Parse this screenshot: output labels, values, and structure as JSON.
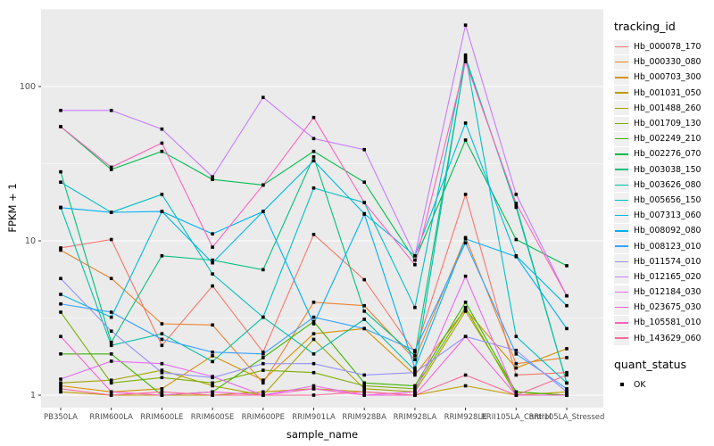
{
  "chart_data": {
    "type": "line",
    "title": "",
    "xlabel": "sample_name",
    "ylabel": "FPKM + 1",
    "y_scale": "log10",
    "ylim": [
      0.85,
      320
    ],
    "y_ticks": [
      "1",
      "10",
      "100"
    ],
    "y_tick_values": [
      1,
      10,
      100
    ],
    "grid": "white major and minor gridlines on gray panel",
    "panel_background": "#EBEBEB",
    "gridline_color": "#FFFFFF",
    "axis_text_color": "#4D4D4D",
    "legend_position": "right",
    "categories": [
      "PB350LA",
      "RRIM600LA",
      "RRIM600LE",
      "RRIM600SE",
      "RRIM600PE",
      "RRIM901LA",
      "RRIM928BA",
      "RRIM928LA",
      "RRIM928LE",
      "RRII105LA_Control",
      "RRII105LA_Stressed"
    ],
    "series": [
      {
        "name": "Hb_000078_170",
        "color": "#F8766D",
        "values": [
          9.0,
          10.2,
          2.1,
          5.1,
          1.9,
          11.0,
          5.6,
          1.9,
          20.0,
          1.35,
          1.4
        ]
      },
      {
        "name": "Hb_000330_080",
        "color": "#EA8331",
        "values": [
          8.7,
          5.7,
          2.9,
          2.85,
          1.2,
          4.0,
          3.8,
          1.7,
          10.5,
          1.6,
          1.75
        ]
      },
      {
        "name": "Hb_000703_300",
        "color": "#D89000",
        "values": [
          1.15,
          1.05,
          1.1,
          1.8,
          1.25,
          2.5,
          2.7,
          1.35,
          3.6,
          1.5,
          2.0
        ]
      },
      {
        "name": "Hb_001031_050",
        "color": "#C09B00",
        "values": [
          1.05,
          1.0,
          1.0,
          1.0,
          1.05,
          1.1,
          1.05,
          1.0,
          1.15,
          1.0,
          1.05
        ]
      },
      {
        "name": "Hb_001488_260",
        "color": "#A3A500",
        "values": [
          1.2,
          1.25,
          1.45,
          1.15,
          1.0,
          2.3,
          1.1,
          1.05,
          3.5,
          1.05,
          1.0
        ]
      },
      {
        "name": "Hb_001709_130",
        "color": "#7CAE00",
        "values": [
          3.45,
          1.2,
          1.3,
          1.2,
          1.45,
          1.4,
          1.15,
          1.1,
          3.7,
          1.0,
          1.0
        ]
      },
      {
        "name": "Hb_002249_210",
        "color": "#39B600",
        "values": [
          1.85,
          1.85,
          1.0,
          1.05,
          1.75,
          3.0,
          1.2,
          1.15,
          4.0,
          1.05,
          1.0
        ]
      },
      {
        "name": "Hb_002276_070",
        "color": "#00BB4E",
        "values": [
          55.0,
          29.0,
          38.0,
          25.0,
          23.0,
          38.0,
          24.0,
          7.5,
          45.0,
          10.2,
          6.9
        ]
      },
      {
        "name": "Hb_003038_150",
        "color": "#00BF7D",
        "values": [
          28.0,
          2.2,
          8.0,
          7.5,
          6.5,
          35.0,
          3.5,
          1.8,
          150.0,
          17.0,
          1.2
        ]
      },
      {
        "name": "Hb_003626_080",
        "color": "#00C1A7",
        "values": [
          16.5,
          2.1,
          2.5,
          1.65,
          3.2,
          1.85,
          3.1,
          1.45,
          155.0,
          16.5,
          1.2
        ]
      },
      {
        "name": "Hb_005656_150",
        "color": "#00BFC4",
        "values": [
          24.0,
          15.3,
          20.0,
          6.1,
          3.2,
          22.0,
          17.7,
          3.7,
          160.0,
          2.4,
          1.2
        ]
      },
      {
        "name": "Hb_007313_060",
        "color": "#00BAE0",
        "values": [
          4.5,
          3.2,
          15.5,
          7.2,
          15.5,
          33.0,
          15.0,
          8.0,
          58.0,
          8.0,
          3.8
        ]
      },
      {
        "name": "Hb_008092_080",
        "color": "#00B0F6",
        "values": [
          16.4,
          15.3,
          15.5,
          11.1,
          15.5,
          2.9,
          14.9,
          1.5,
          10.3,
          7.9,
          2.7
        ]
      },
      {
        "name": "Hb_008123_010",
        "color": "#35A2FF",
        "values": [
          3.9,
          3.45,
          2.3,
          1.9,
          1.85,
          3.2,
          2.7,
          1.95,
          9.7,
          1.85,
          1.1
        ]
      },
      {
        "name": "Hb_011574_010",
        "color": "#9590FF",
        "values": [
          5.7,
          2.6,
          1.4,
          1.3,
          1.6,
          1.6,
          1.35,
          1.4,
          2.4,
          1.95,
          1.05
        ]
      },
      {
        "name": "Hb_012165_020",
        "color": "#C77CFF",
        "values": [
          70.0,
          70.0,
          53.0,
          26.0,
          85.0,
          46.0,
          39.0,
          8.0,
          250.0,
          20.0,
          4.4
        ]
      },
      {
        "name": "Hb_012184_030",
        "color": "#E76BF3",
        "values": [
          1.27,
          1.66,
          1.6,
          1.32,
          1.0,
          1.15,
          1.0,
          1.05,
          5.9,
          1.0,
          1.0
        ]
      },
      {
        "name": "Hb_023675_030",
        "color": "#FA62DB",
        "values": [
          2.4,
          1.05,
          1.0,
          1.05,
          1.0,
          1.1,
          1.0,
          1.0,
          2.4,
          1.0,
          1.0
        ]
      },
      {
        "name": "Hb_105581_010",
        "color": "#FF62BC",
        "values": [
          55.0,
          30.0,
          43.0,
          9.1,
          23.0,
          63.0,
          17.7,
          7.0,
          145.0,
          17.5,
          4.4
        ]
      },
      {
        "name": "Hb_143629_060",
        "color": "#FF6A98",
        "values": [
          1.1,
          1.0,
          1.05,
          1.0,
          1.0,
          1.0,
          1.05,
          1.0,
          1.35,
          1.0,
          1.35
        ]
      }
    ],
    "point_marker": {
      "shape": "square",
      "color": "#000000",
      "meaning": "quant_status OK"
    }
  },
  "legend": {
    "tracking_title": "tracking_id",
    "quant_title": "quant_status",
    "quant_ok_label": "OK"
  }
}
